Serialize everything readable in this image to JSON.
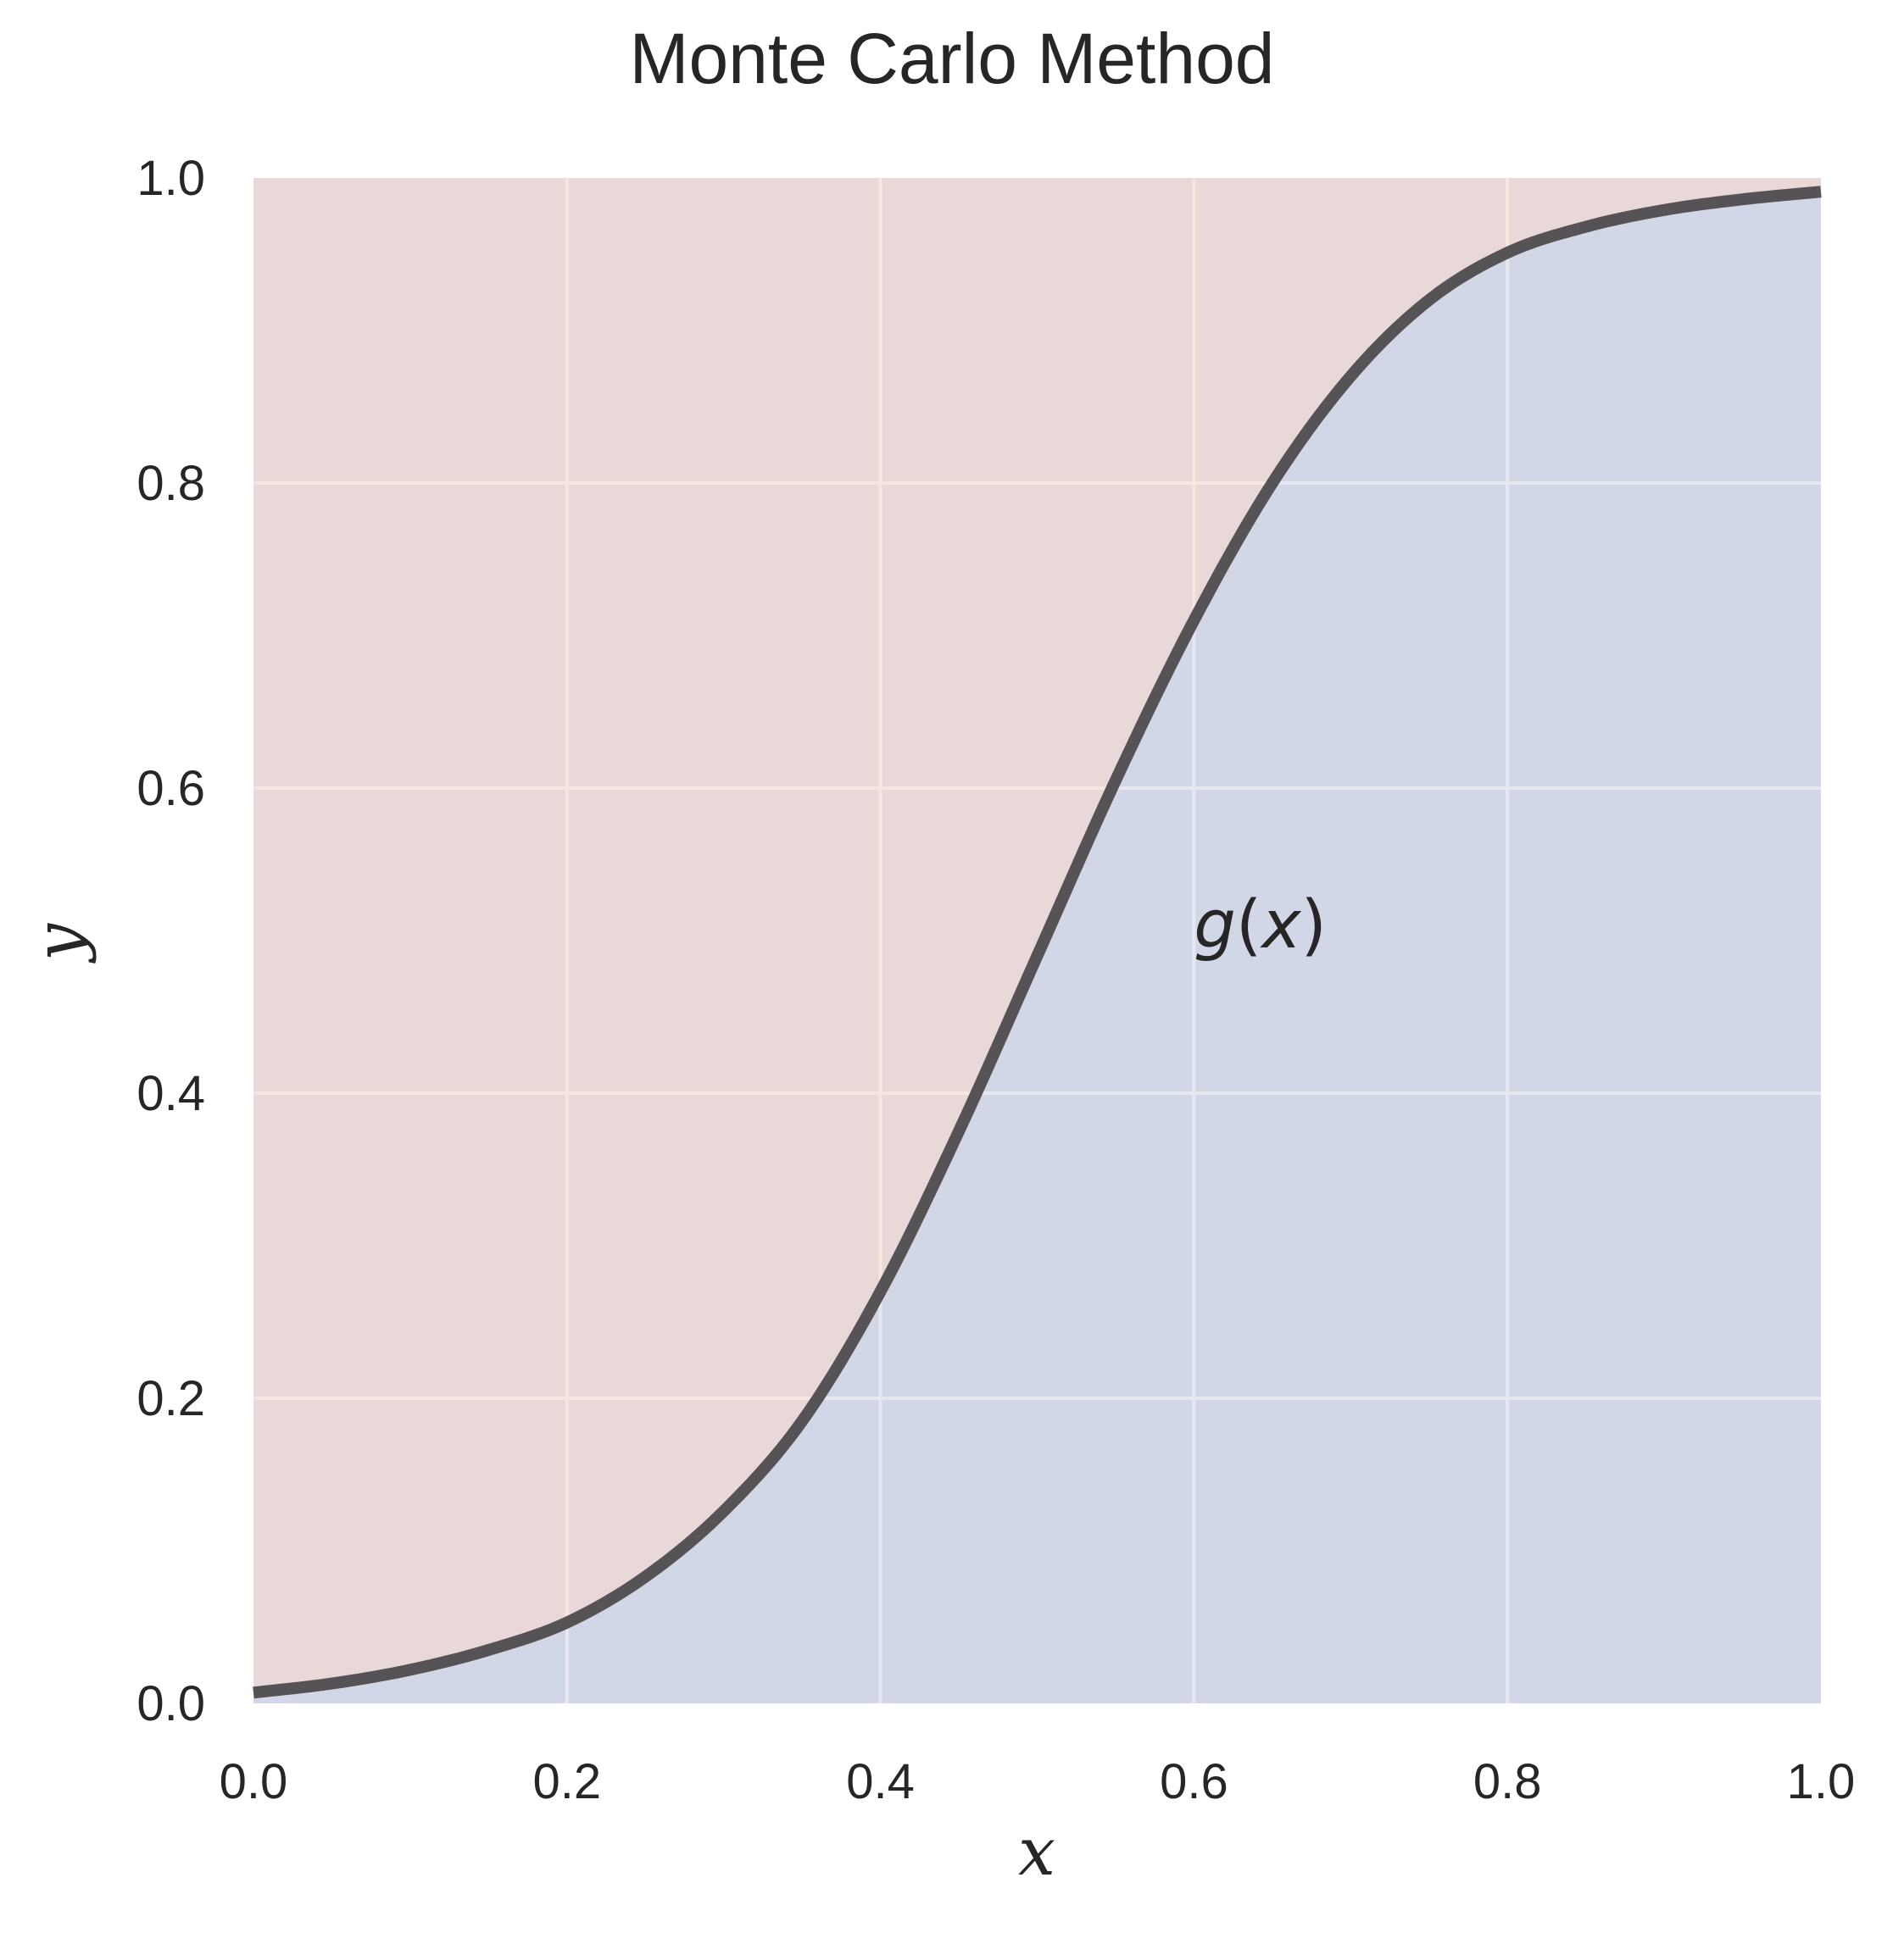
{
  "chart_data": {
    "type": "area",
    "title": "Monte Carlo Method",
    "xlabel": "x",
    "ylabel": "y",
    "xlim": [
      0.0,
      1.0
    ],
    "ylim": [
      0.0,
      1.0
    ],
    "x_ticks": [
      "0.0",
      "0.2",
      "0.4",
      "0.6",
      "0.8",
      "1.0"
    ],
    "y_ticks": [
      "0.0",
      "0.2",
      "0.4",
      "0.6",
      "0.8",
      "1.0"
    ],
    "grid": true,
    "series": [
      {
        "name": "g(x)",
        "x": [
          0.0,
          0.05,
          0.1,
          0.15,
          0.2,
          0.25,
          0.3,
          0.35,
          0.4,
          0.45,
          0.5,
          0.55,
          0.6,
          0.65,
          0.7,
          0.75,
          0.8,
          0.85,
          0.9,
          0.95,
          1.0
        ],
        "y": [
          0.007,
          0.013,
          0.022,
          0.035,
          0.053,
          0.083,
          0.126,
          0.185,
          0.27,
          0.375,
          0.49,
          0.605,
          0.71,
          0.8,
          0.87,
          0.92,
          0.951,
          0.968,
          0.979,
          0.986,
          0.991
        ]
      }
    ],
    "annotation": {
      "prefix": "g",
      "arg": "x",
      "x": 0.6,
      "y": 0.5
    },
    "colors": {
      "above_fill": "#e8d8d8",
      "below_fill": "#d1d7e6",
      "curve": "#555355",
      "grid_above": "#f6e6df",
      "grid_below": "#e6e8f0"
    }
  }
}
